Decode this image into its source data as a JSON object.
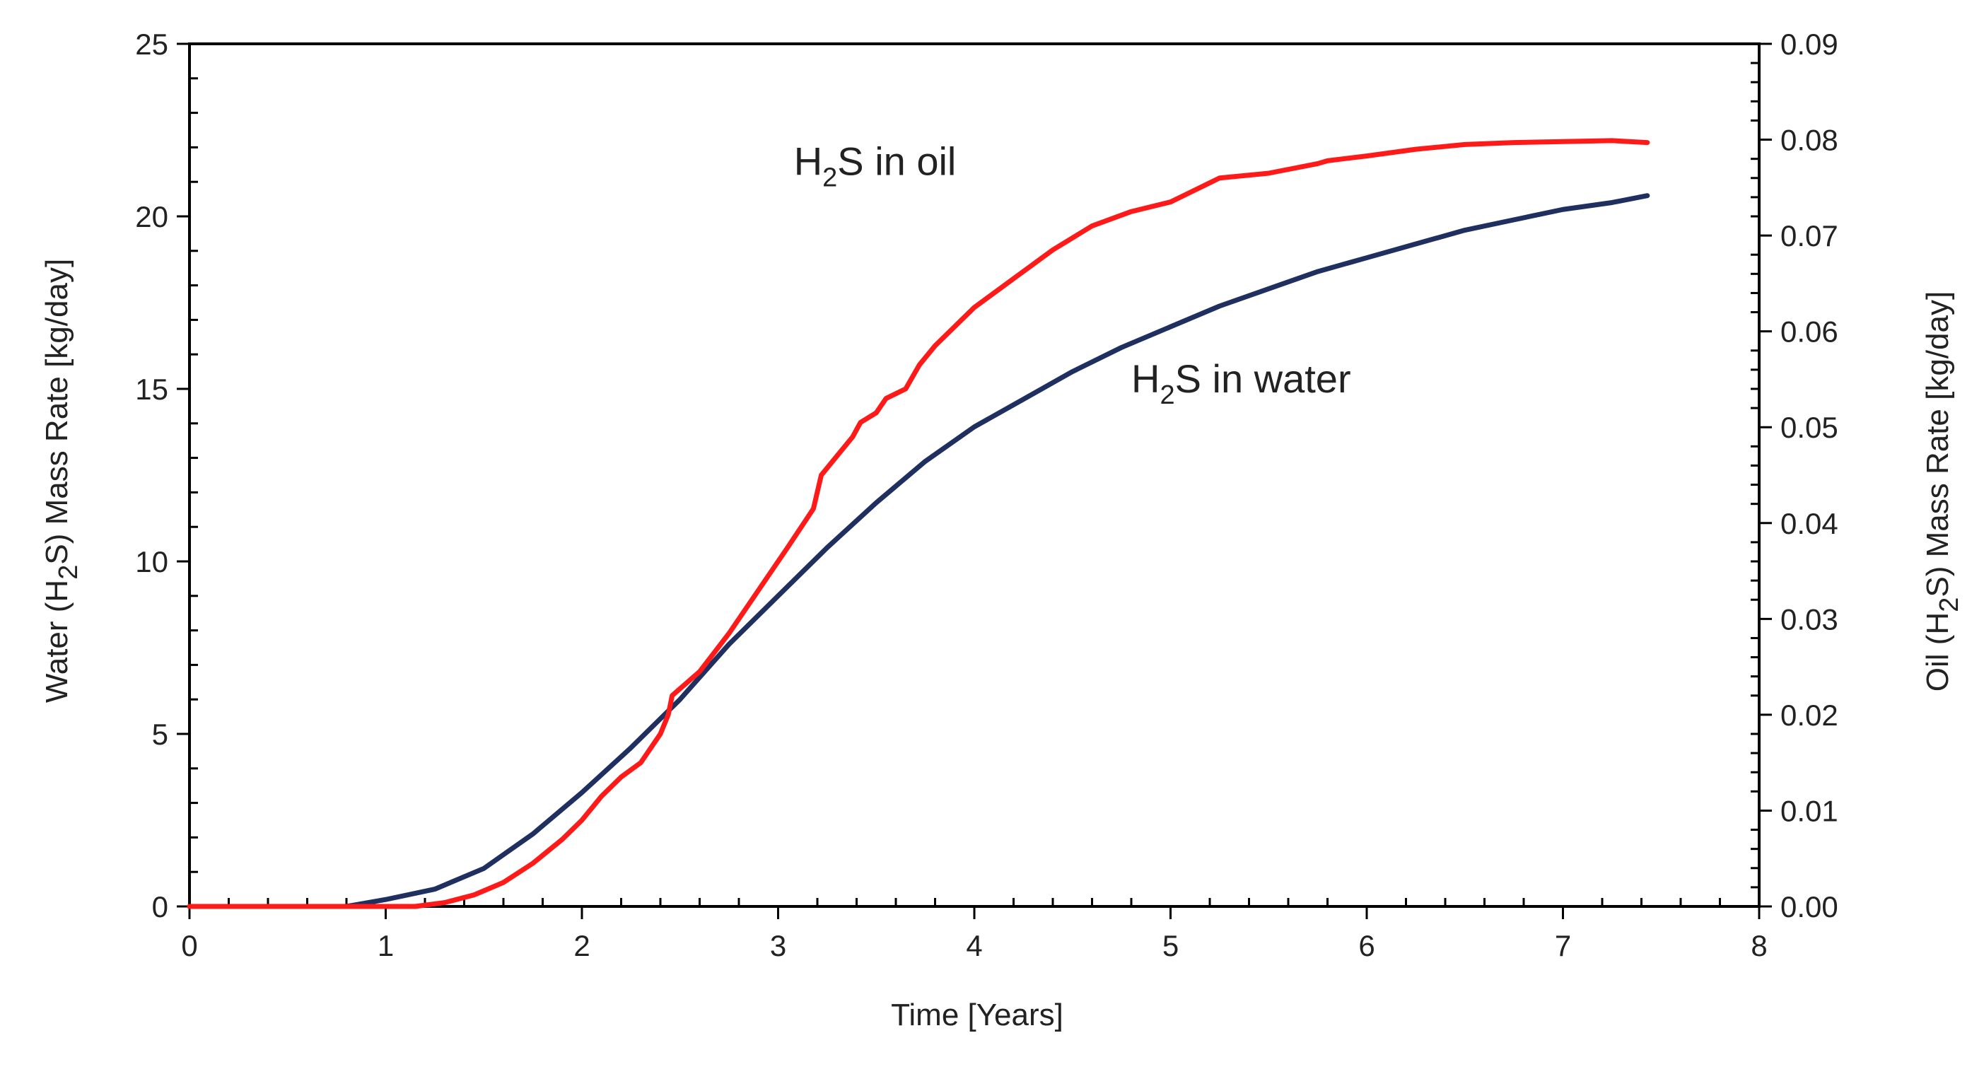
{
  "chart_data": {
    "type": "line",
    "title": "",
    "xlabel": "Time [Years]",
    "ylabel": {
      "pre": "Water (H",
      "sub": "2",
      "post": "S) Mass Rate [kg/day]"
    },
    "y2label": {
      "pre": "Oil (H",
      "sub": "2",
      "post": "S) Mass Rate [kg/day]"
    },
    "xlim": [
      0,
      8
    ],
    "ylim": [
      0,
      25
    ],
    "y2lim": [
      0,
      0.09
    ],
    "x_ticks": [
      0,
      1,
      2,
      3,
      4,
      5,
      6,
      7,
      8
    ],
    "x_tick_labels": [
      "0",
      "1",
      "2",
      "3",
      "4",
      "5",
      "6",
      "7",
      "8"
    ],
    "y_ticks": [
      0,
      5,
      10,
      15,
      20,
      25
    ],
    "y_tick_labels": [
      "0",
      "5",
      "10",
      "15",
      "20",
      "25"
    ],
    "y2_ticks": [
      0,
      0.01,
      0.02,
      0.03,
      0.04,
      0.05,
      0.06,
      0.07,
      0.08,
      0.09
    ],
    "y2_tick_labels": [
      "0.00",
      "0.01",
      "0.02",
      "0.03",
      "0.04",
      "0.05",
      "0.06",
      "0.07",
      "0.08",
      "0.09"
    ],
    "grid": false,
    "series": [
      {
        "name": "H2S in water",
        "axis": "left",
        "color": "#1f3060",
        "x": [
          0,
          0.5,
          0.8,
          1.0,
          1.25,
          1.5,
          1.75,
          2.0,
          2.25,
          2.5,
          2.75,
          3.0,
          3.25,
          3.5,
          3.75,
          4.0,
          4.25,
          4.5,
          4.75,
          5.0,
          5.25,
          5.5,
          5.75,
          6.0,
          6.25,
          6.5,
          6.75,
          7.0,
          7.25,
          7.43
        ],
        "y": [
          0,
          0,
          0,
          0.2,
          0.5,
          1.1,
          2.1,
          3.3,
          4.6,
          6.0,
          7.6,
          9.0,
          10.4,
          11.7,
          12.9,
          13.9,
          14.7,
          15.5,
          16.2,
          16.8,
          17.4,
          17.9,
          18.4,
          18.8,
          19.2,
          19.6,
          19.9,
          20.2,
          20.4,
          20.6
        ]
      },
      {
        "name": "H2S in oil",
        "axis": "right",
        "color": "#ff1a1a",
        "x": [
          0,
          0.5,
          1.0,
          1.15,
          1.3,
          1.45,
          1.6,
          1.75,
          1.9,
          2.0,
          2.1,
          2.2,
          2.3,
          2.4,
          2.44,
          2.46,
          2.6,
          2.75,
          2.9,
          3.05,
          3.18,
          3.22,
          3.3,
          3.38,
          3.42,
          3.5,
          3.55,
          3.65,
          3.72,
          3.8,
          3.9,
          4.0,
          4.2,
          4.4,
          4.6,
          4.8,
          5.0,
          5.1,
          5.2,
          5.25,
          5.5,
          5.75,
          5.8,
          6.0,
          6.25,
          6.5,
          6.75,
          7.0,
          7.25,
          7.43
        ],
        "y": [
          0,
          0,
          0,
          0,
          0.0004,
          0.0012,
          0.0025,
          0.0045,
          0.007,
          0.009,
          0.0115,
          0.0135,
          0.015,
          0.018,
          0.02,
          0.022,
          0.0245,
          0.0285,
          0.033,
          0.0375,
          0.0415,
          0.045,
          0.047,
          0.049,
          0.0505,
          0.0515,
          0.053,
          0.054,
          0.0565,
          0.0585,
          0.0605,
          0.0625,
          0.0655,
          0.0685,
          0.071,
          0.0725,
          0.0735,
          0.0745,
          0.0755,
          0.076,
          0.0765,
          0.0775,
          0.0778,
          0.0783,
          0.079,
          0.0795,
          0.0797,
          0.0798,
          0.0799,
          0.0797
        ]
      }
    ],
    "annotations": [
      {
        "pre": "H",
        "sub": "2",
        "post": "S in oil",
        "x": 3.08,
        "y": 21.2
      },
      {
        "pre": "H",
        "sub": "2",
        "post": "S in water",
        "x": 4.8,
        "y": 14.9
      }
    ]
  }
}
